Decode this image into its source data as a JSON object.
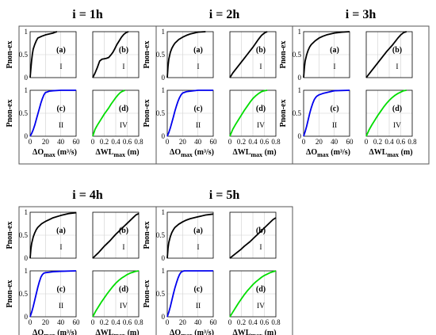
{
  "figure_labels": {
    "ylabel": "Pnon-ex",
    "xlabel_q_main": "ΔO",
    "xlabel_q_sub": "max",
    "xlabel_q_unit": " (m³/s)",
    "xlabel_wl_main": "ΔWL",
    "xlabel_wl_sub": "max",
    "xlabel_wl_unit": " (m)"
  },
  "colors": {
    "type_I": "#000000",
    "type_II": "#0000ee",
    "type_IV": "#00dd00",
    "grid": "#cfcfcf",
    "frame": "#555555"
  },
  "axes": {
    "q": {
      "xlim": [
        0,
        60
      ],
      "xticks": [
        "0",
        "20",
        "40",
        "60"
      ]
    },
    "wl": {
      "xlim": [
        0,
        0.8
      ],
      "xticks": [
        "0",
        "0.2",
        "0.4",
        "0.6",
        "0.8"
      ]
    },
    "y": {
      "ylim": [
        0,
        1
      ],
      "yticks": [
        "0",
        "0.5",
        "1"
      ]
    }
  },
  "chart_data": [
    {
      "title": "i = 1h",
      "type": "line",
      "panels": [
        {
          "label": "(a)",
          "class": "I",
          "axis": "q",
          "x": [
            0,
            1,
            2,
            3,
            4,
            6,
            8,
            10,
            15,
            20,
            25,
            30,
            33,
            35
          ],
          "y": [
            0,
            0.2,
            0.38,
            0.52,
            0.62,
            0.72,
            0.8,
            0.86,
            0.9,
            0.93,
            0.95,
            0.97,
            0.99,
            1
          ]
        },
        {
          "label": "(b)",
          "class": "I",
          "axis": "wl",
          "x": [
            0,
            0.04,
            0.08,
            0.12,
            0.16,
            0.2,
            0.24,
            0.28,
            0.32,
            0.35,
            0.38,
            0.42,
            0.46,
            0.5,
            0.54,
            0.58,
            0.62
          ],
          "y": [
            0,
            0.1,
            0.22,
            0.36,
            0.4,
            0.41,
            0.42,
            0.44,
            0.5,
            0.55,
            0.62,
            0.72,
            0.8,
            0.88,
            0.94,
            0.98,
            1
          ]
        },
        {
          "label": "(c)",
          "class": "II",
          "axis": "q",
          "x": [
            0,
            2,
            4,
            6,
            8,
            10,
            12,
            14,
            16,
            18,
            20,
            25,
            30,
            40,
            60
          ],
          "y": [
            0,
            0.06,
            0.14,
            0.24,
            0.36,
            0.48,
            0.6,
            0.72,
            0.82,
            0.9,
            0.95,
            0.98,
            0.99,
            1,
            1
          ]
        },
        {
          "label": "(d)",
          "class": "IV",
          "axis": "wl",
          "x": [
            0,
            0.04,
            0.08,
            0.12,
            0.16,
            0.2,
            0.24,
            0.28,
            0.32,
            0.36,
            0.4,
            0.44,
            0.48,
            0.52,
            0.56
          ],
          "y": [
            0,
            0.15,
            0.24,
            0.32,
            0.4,
            0.48,
            0.55,
            0.62,
            0.7,
            0.77,
            0.84,
            0.9,
            0.95,
            0.98,
            1
          ]
        }
      ]
    },
    {
      "title": "i = 2h",
      "type": "line",
      "panels": [
        {
          "label": "(a)",
          "class": "I",
          "axis": "q",
          "x": [
            0,
            1,
            2,
            4,
            6,
            8,
            10,
            15,
            20,
            25,
            30,
            40,
            50
          ],
          "y": [
            0,
            0.25,
            0.4,
            0.55,
            0.64,
            0.7,
            0.75,
            0.83,
            0.88,
            0.92,
            0.95,
            0.99,
            1
          ]
        },
        {
          "label": "(b)",
          "class": "I",
          "axis": "wl",
          "x": [
            0,
            0.05,
            0.1,
            0.15,
            0.2,
            0.25,
            0.3,
            0.35,
            0.4,
            0.45,
            0.5,
            0.55,
            0.6,
            0.65
          ],
          "y": [
            0,
            0.1,
            0.18,
            0.26,
            0.34,
            0.42,
            0.5,
            0.58,
            0.66,
            0.75,
            0.84,
            0.92,
            0.97,
            1
          ]
        },
        {
          "label": "(c)",
          "class": "II",
          "axis": "q",
          "x": [
            0,
            2,
            4,
            6,
            8,
            10,
            12,
            14,
            16,
            18,
            20,
            25,
            30,
            40,
            60
          ],
          "y": [
            0,
            0.08,
            0.18,
            0.3,
            0.42,
            0.55,
            0.66,
            0.76,
            0.84,
            0.9,
            0.94,
            0.97,
            0.98,
            1,
            1
          ]
        },
        {
          "label": "(d)",
          "class": "IV",
          "axis": "wl",
          "x": [
            0,
            0.05,
            0.1,
            0.15,
            0.2,
            0.25,
            0.3,
            0.35,
            0.4,
            0.45,
            0.5,
            0.55,
            0.6,
            0.65
          ],
          "y": [
            0,
            0.15,
            0.26,
            0.36,
            0.46,
            0.56,
            0.65,
            0.74,
            0.82,
            0.88,
            0.93,
            0.97,
            0.99,
            1
          ]
        }
      ]
    },
    {
      "title": "i = 3h",
      "type": "line",
      "panels": [
        {
          "label": "(a)",
          "class": "I",
          "axis": "q",
          "x": [
            0,
            1,
            2,
            4,
            6,
            8,
            10,
            15,
            20,
            25,
            30,
            40,
            50,
            60
          ],
          "y": [
            0,
            0.22,
            0.36,
            0.5,
            0.6,
            0.67,
            0.72,
            0.8,
            0.86,
            0.9,
            0.93,
            0.97,
            0.99,
            1
          ]
        },
        {
          "label": "(b)",
          "class": "I",
          "axis": "wl",
          "x": [
            0,
            0.05,
            0.1,
            0.15,
            0.2,
            0.25,
            0.3,
            0.35,
            0.4,
            0.45,
            0.5,
            0.55,
            0.6,
            0.65,
            0.7
          ],
          "y": [
            0,
            0.08,
            0.16,
            0.24,
            0.32,
            0.4,
            0.48,
            0.56,
            0.63,
            0.7,
            0.78,
            0.86,
            0.93,
            0.98,
            1
          ]
        },
        {
          "label": "(c)",
          "class": "II",
          "axis": "q",
          "x": [
            0,
            2,
            4,
            6,
            8,
            10,
            12,
            14,
            16,
            18,
            20,
            25,
            30,
            40,
            60
          ],
          "y": [
            0,
            0.1,
            0.22,
            0.36,
            0.5,
            0.62,
            0.72,
            0.8,
            0.85,
            0.88,
            0.9,
            0.93,
            0.95,
            0.99,
            1
          ]
        },
        {
          "label": "(d)",
          "class": "IV",
          "axis": "wl",
          "x": [
            0,
            0.05,
            0.1,
            0.15,
            0.2,
            0.25,
            0.3,
            0.35,
            0.4,
            0.45,
            0.5,
            0.55,
            0.6,
            0.65,
            0.7
          ],
          "y": [
            0,
            0.14,
            0.25,
            0.35,
            0.45,
            0.54,
            0.63,
            0.71,
            0.78,
            0.84,
            0.89,
            0.93,
            0.96,
            0.99,
            1
          ]
        }
      ]
    },
    {
      "title": "i = 4h",
      "type": "line",
      "panels": [
        {
          "label": "(a)",
          "class": "I",
          "axis": "q",
          "x": [
            0,
            1,
            2,
            4,
            6,
            8,
            10,
            15,
            20,
            25,
            30,
            40,
            50,
            60
          ],
          "y": [
            0,
            0.2,
            0.32,
            0.46,
            0.55,
            0.62,
            0.67,
            0.75,
            0.8,
            0.84,
            0.88,
            0.93,
            0.97,
            0.99
          ]
        },
        {
          "label": "(b)",
          "class": "I",
          "axis": "wl",
          "x": [
            0,
            0.05,
            0.1,
            0.15,
            0.2,
            0.25,
            0.3,
            0.35,
            0.4,
            0.45,
            0.5,
            0.55,
            0.6,
            0.65,
            0.7,
            0.75,
            0.8
          ],
          "y": [
            0,
            0.06,
            0.12,
            0.19,
            0.26,
            0.32,
            0.38,
            0.45,
            0.52,
            0.58,
            0.64,
            0.7,
            0.76,
            0.82,
            0.88,
            0.94,
            0.97
          ]
        },
        {
          "label": "(c)",
          "class": "II",
          "axis": "q",
          "x": [
            0,
            2,
            4,
            6,
            8,
            10,
            12,
            14,
            16,
            18,
            20,
            25,
            30,
            40,
            60
          ],
          "y": [
            0,
            0.1,
            0.22,
            0.36,
            0.5,
            0.64,
            0.76,
            0.86,
            0.92,
            0.95,
            0.96,
            0.97,
            0.98,
            0.99,
            1
          ]
        },
        {
          "label": "(d)",
          "class": "IV",
          "axis": "wl",
          "x": [
            0,
            0.05,
            0.1,
            0.15,
            0.2,
            0.25,
            0.3,
            0.35,
            0.4,
            0.45,
            0.5,
            0.55,
            0.6,
            0.65,
            0.7,
            0.75,
            0.8
          ],
          "y": [
            0,
            0.12,
            0.22,
            0.32,
            0.41,
            0.5,
            0.58,
            0.66,
            0.73,
            0.79,
            0.84,
            0.88,
            0.92,
            0.95,
            0.97,
            0.99,
            1
          ]
        }
      ]
    },
    {
      "title": "i = 5h",
      "type": "line",
      "panels": [
        {
          "label": "(a)",
          "class": "I",
          "axis": "q",
          "x": [
            0,
            1,
            2,
            4,
            6,
            8,
            10,
            15,
            20,
            25,
            30,
            40,
            50,
            60
          ],
          "y": [
            0,
            0.22,
            0.34,
            0.47,
            0.56,
            0.62,
            0.67,
            0.74,
            0.79,
            0.83,
            0.86,
            0.9,
            0.94,
            0.96
          ]
        },
        {
          "label": "(b)",
          "class": "I",
          "axis": "wl",
          "x": [
            0,
            0.05,
            0.1,
            0.15,
            0.2,
            0.25,
            0.3,
            0.35,
            0.4,
            0.45,
            0.5,
            0.55,
            0.6,
            0.65,
            0.7,
            0.75,
            0.8
          ],
          "y": [
            0,
            0.05,
            0.1,
            0.15,
            0.2,
            0.26,
            0.31,
            0.36,
            0.42,
            0.48,
            0.54,
            0.6,
            0.66,
            0.72,
            0.78,
            0.84,
            0.88
          ]
        },
        {
          "label": "(c)",
          "class": "II",
          "axis": "q",
          "x": [
            0,
            2,
            4,
            6,
            8,
            10,
            12,
            14,
            16,
            18,
            20,
            22,
            25,
            30,
            60
          ],
          "y": [
            0,
            0.1,
            0.22,
            0.36,
            0.5,
            0.63,
            0.74,
            0.84,
            0.92,
            0.97,
            0.99,
            1,
            1,
            1,
            1
          ]
        },
        {
          "label": "(d)",
          "class": "IV",
          "axis": "wl",
          "x": [
            0,
            0.05,
            0.1,
            0.15,
            0.2,
            0.25,
            0.3,
            0.35,
            0.4,
            0.45,
            0.5,
            0.55,
            0.6,
            0.65,
            0.7,
            0.75,
            0.8
          ],
          "y": [
            0,
            0.1,
            0.2,
            0.3,
            0.39,
            0.48,
            0.56,
            0.63,
            0.7,
            0.76,
            0.81,
            0.86,
            0.9,
            0.93,
            0.96,
            0.98,
            1
          ]
        }
      ]
    }
  ]
}
